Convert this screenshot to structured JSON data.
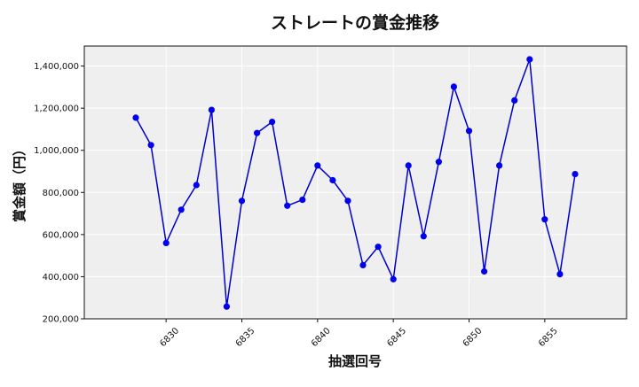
{
  "chart_data": {
    "type": "line",
    "title": "ストレートの賞金推移",
    "xlabel": "抽選回号",
    "ylabel": "賞金額（円）",
    "x": [
      6828,
      6829,
      6830,
      6831,
      6832,
      6833,
      6834,
      6835,
      6836,
      6837,
      6838,
      6839,
      6840,
      6841,
      6842,
      6843,
      6844,
      6845,
      6846,
      6847,
      6848,
      6849,
      6850,
      6851,
      6852,
      6853,
      6854,
      6855,
      6856,
      6857
    ],
    "series": [
      {
        "values": [
          1155000,
          1025000,
          560000,
          718000,
          835000,
          1192000,
          258000,
          760000,
          1082000,
          1135000,
          737000,
          765000,
          928000,
          858000,
          760000,
          455000,
          542000,
          388000,
          928000,
          592000,
          945000,
          1302000,
          1092000,
          425000,
          928000,
          1237000,
          1432000,
          672000,
          412000,
          887000
        ]
      }
    ],
    "xticks": [
      "6830",
      "6835",
      "6840",
      "6845",
      "6850",
      "6855"
    ],
    "yticks": [
      "200,000",
      "400,000",
      "600,000",
      "800,000",
      "1,000,000",
      "1,200,000",
      "1,400,000"
    ],
    "xlim": [
      6824.6,
      6860.4
    ],
    "ylim": [
      200000,
      1495000
    ],
    "grid": true,
    "colors": {
      "line": "#0000cc",
      "marker": "#0000ee",
      "plot_bg": "#efefef",
      "grid": "#ffffff"
    }
  }
}
